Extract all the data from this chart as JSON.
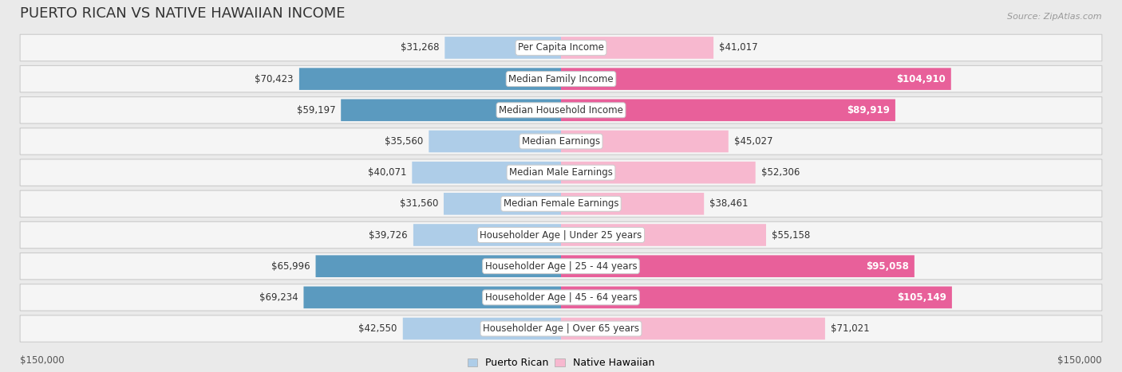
{
  "title": "PUERTO RICAN VS NATIVE HAWAIIAN INCOME",
  "source": "Source: ZipAtlas.com",
  "categories": [
    "Per Capita Income",
    "Median Family Income",
    "Median Household Income",
    "Median Earnings",
    "Median Male Earnings",
    "Median Female Earnings",
    "Householder Age | Under 25 years",
    "Householder Age | 25 - 44 years",
    "Householder Age | 45 - 64 years",
    "Householder Age | Over 65 years"
  ],
  "puerto_rican": [
    31268,
    70423,
    59197,
    35560,
    40071,
    31560,
    39726,
    65996,
    69234,
    42550
  ],
  "native_hawaiian": [
    41017,
    104910,
    89919,
    45027,
    52306,
    38461,
    55158,
    95058,
    105149,
    71021
  ],
  "puerto_rican_labels": [
    "$31,268",
    "$70,423",
    "$59,197",
    "$35,560",
    "$40,071",
    "$31,560",
    "$39,726",
    "$65,996",
    "$69,234",
    "$42,550"
  ],
  "native_hawaiian_labels": [
    "$41,017",
    "$104,910",
    "$89,919",
    "$45,027",
    "$52,306",
    "$38,461",
    "$55,158",
    "$95,058",
    "$105,149",
    "$71,021"
  ],
  "pr_color_light": "#aecde8",
  "pr_color_dark": "#5b9abf",
  "nh_color_light": "#f7b8cf",
  "nh_color_dark": "#e8609a",
  "bg_color": "#eaeaea",
  "row_bg": "#f5f5f5",
  "max_val": 150000,
  "axis_label_left": "$150,000",
  "axis_label_right": "$150,000",
  "legend_pr": "Puerto Rican",
  "legend_nh": "Native Hawaiian",
  "title_fontsize": 13,
  "label_fontsize": 8.5,
  "category_fontsize": 8.5,
  "source_fontsize": 8,
  "pr_threshold": 55000,
  "nh_threshold": 80000
}
